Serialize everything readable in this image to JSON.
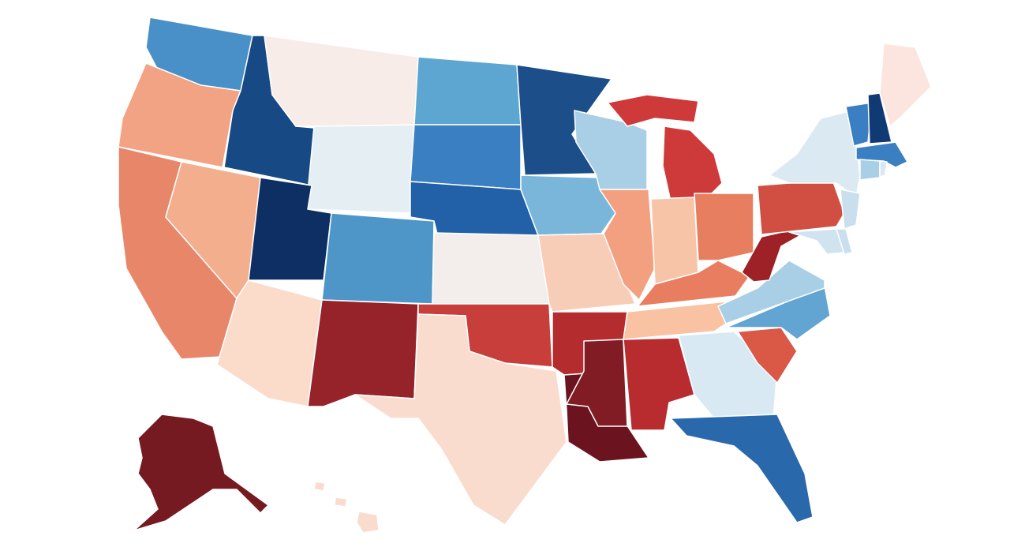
{
  "map": {
    "type": "choropleth",
    "background": "#ffffff",
    "border_color": "#ffffff",
    "region_colors": {
      "WA": "#4a90c8",
      "OR": "#f2a383",
      "ID": "#174a85",
      "MT": "#f7ece8",
      "WY": "#e5eef2",
      "ND": "#5ea6d2",
      "SD": "#3a7fc1",
      "NE": "#2260a8",
      "CA": "#e8866a",
      "NV": "#f3ae8e",
      "UT": "#0d2f63",
      "CO": "#4d96c7",
      "AZ": "#fbdccb",
      "NM": "#97232a",
      "KS": "#f3eeec",
      "OK": "#c73e3a",
      "TX": "#fadcce",
      "MN": "#1c4f8a",
      "IA": "#7ab6da",
      "MO": "#f8cdb8",
      "AR": "#b42c2e",
      "LA": "#6b141f",
      "WI": "#a9cfe6",
      "IL": "#f2a07f",
      "MI": "#ce3a3a",
      "IN": "#f8c4a8",
      "OH": "#e87e60",
      "KY": "#e87e5f",
      "TN": "#f9c2a2",
      "MS": "#821c24",
      "AL": "#b82c30",
      "GA": "#d9e9f3",
      "FL": "#2a68ac",
      "SC": "#d95846",
      "NC": "#62a4d2",
      "VA": "#a9cfe6",
      "WV": "#9d2127",
      "PA": "#d04e42",
      "NY": "#dbe9f3",
      "NJ": "#c9dfee",
      "MD": "#d0e4f0",
      "DE": "#c9dfee",
      "VT": "#3a7fc1",
      "NH": "#0f3a73",
      "ME": "#fce5de",
      "MA": "#3a7fc1",
      "CT": "#a9cfe6",
      "RI": "#d9e9f3",
      "AK": "#761a21",
      "HI": "#fadcce"
    }
  }
}
